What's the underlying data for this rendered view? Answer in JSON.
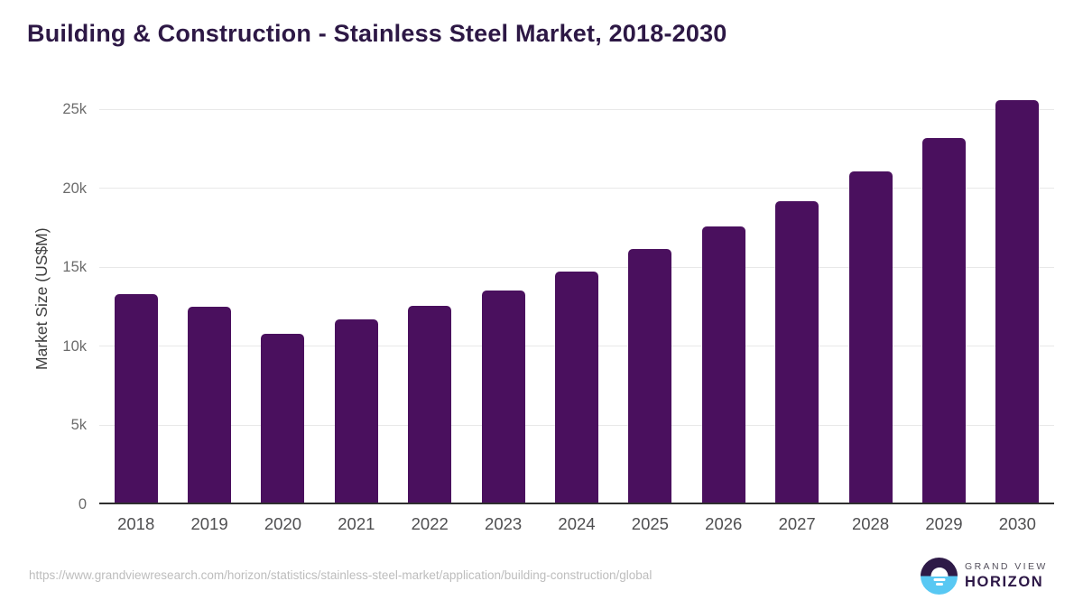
{
  "header": {
    "title": "Building & Construction - Stainless Steel Market, 2018-2030"
  },
  "chart_data": {
    "type": "bar",
    "title": "Building & Construction - Stainless Steel Market, 2018-2030",
    "categories": [
      "2018",
      "2019",
      "2020",
      "2021",
      "2022",
      "2023",
      "2024",
      "2025",
      "2026",
      "2027",
      "2028",
      "2029",
      "2030"
    ],
    "values": [
      13300,
      12500,
      10800,
      11700,
      12550,
      13550,
      14750,
      16150,
      17600,
      19150,
      21050,
      23150,
      25550
    ],
    "xlabel": "",
    "ylabel": "Market Size (US$M)",
    "ylim": [
      0,
      26000
    ],
    "y_ticks": [
      {
        "value": 0,
        "label": "0"
      },
      {
        "value": 5000,
        "label": "5k"
      },
      {
        "value": 10000,
        "label": "10k"
      },
      {
        "value": 15000,
        "label": "15k"
      },
      {
        "value": 20000,
        "label": "20k"
      },
      {
        "value": 25000,
        "label": "25k"
      }
    ],
    "grid": "horizontal",
    "legend": "none",
    "bar_color": "#4a105e"
  },
  "footer": {
    "source_url": "https://www.grandviewresearch.com/horizon/statistics/stainless-steel-market/application/building-construction/global",
    "logo": {
      "line1": "GRAND VIEW",
      "line2": "HORIZON"
    }
  },
  "colors": {
    "title": "#2d1845",
    "bar": "#4a105e",
    "logo_dark": "#2e1a47",
    "logo_blue": "#58c8f3",
    "logo_wordmark": "#2c1746"
  }
}
